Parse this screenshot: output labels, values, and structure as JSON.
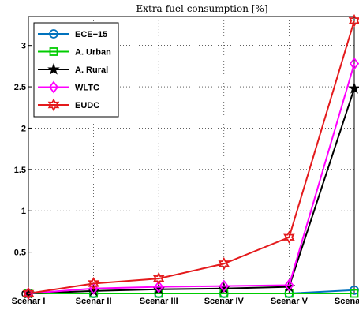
{
  "chart_data": {
    "type": "line",
    "title": "Extra-fuel consumption [%]",
    "xlabel": "",
    "ylabel": "",
    "categories": [
      "Scenar I",
      "Scenar II",
      "Scenar III",
      "Scenar IV",
      "Scenar V",
      "Scenar VI"
    ],
    "ylim": [
      0,
      3.35
    ],
    "yticks": [
      "0",
      "0.5",
      "1",
      "1.5",
      "2",
      "2.5",
      "3"
    ],
    "grid": true,
    "legend_position": "top-left",
    "series": [
      {
        "name": "ECE−15",
        "color": "#0072bd",
        "marker": "circle",
        "values": [
          0,
          0.0,
          0.0,
          0.0,
          0.0,
          0.04
        ]
      },
      {
        "name": "A. Urban",
        "color": "#00cc00",
        "marker": "square",
        "values": [
          0,
          0.0,
          0.0,
          0.0,
          0.0,
          0.0
        ]
      },
      {
        "name": "A. Rural",
        "color": "#000000",
        "marker": "star",
        "values": [
          0,
          0.03,
          0.05,
          0.06,
          0.08,
          2.48
        ]
      },
      {
        "name": "WLTC",
        "color": "#ff00ff",
        "marker": "diamond",
        "values": [
          0,
          0.06,
          0.08,
          0.09,
          0.1,
          2.78
        ]
      },
      {
        "name": "EUDC",
        "color": "#e41a1c",
        "marker": "hexagram",
        "values": [
          0,
          0.12,
          0.18,
          0.36,
          0.68,
          3.3
        ]
      }
    ]
  }
}
